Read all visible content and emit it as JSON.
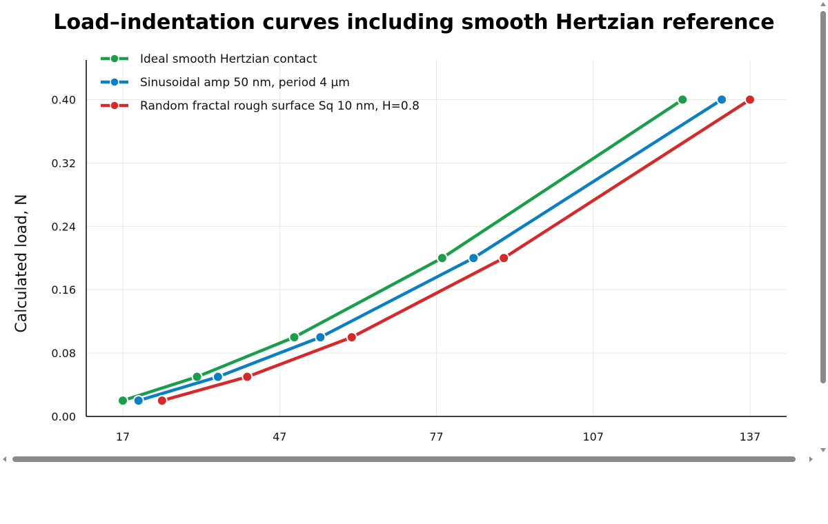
{
  "chart_data": {
    "type": "line",
    "title": "Load–indentation curves including smooth Hertzian reference",
    "ylabel": "Calculated load, N",
    "xlabel_visible_fragment": "",
    "xlim": [
      10,
      144
    ],
    "ylim": [
      0,
      0.45
    ],
    "xticks": [
      17,
      47,
      77,
      107,
      137
    ],
    "yticks": [
      0.0,
      0.08,
      0.16,
      0.24,
      0.32,
      0.4
    ],
    "xtick_labels": [
      "17",
      "47",
      "77",
      "107",
      "137"
    ],
    "ytick_labels": [
      "0.00",
      "0.08",
      "0.16",
      "0.24",
      "0.32",
      "0.40"
    ],
    "grid": true,
    "legend_position": "top-left",
    "series": [
      {
        "name": "Ideal smooth Hertzian contact",
        "color": "#1a9e4a",
        "points": [
          [
            17,
            0.02
          ],
          [
            31.2,
            0.05
          ],
          [
            49.8,
            0.1
          ],
          [
            78.1,
            0.2
          ],
          [
            124.1,
            0.4
          ]
        ]
      },
      {
        "name": "Sinusoidal amp 50 nm, period 4 µm",
        "color": "#0a7fc1",
        "points": [
          [
            20,
            0.02
          ],
          [
            35.2,
            0.05
          ],
          [
            54.8,
            0.1
          ],
          [
            84.1,
            0.2
          ],
          [
            131.6,
            0.4
          ]
        ]
      },
      {
        "name": "Random fractal rough surface Sq 10 nm, H=0.8",
        "color": "#d62a2a",
        "points": [
          [
            24.5,
            0.02
          ],
          [
            40.8,
            0.05
          ],
          [
            60.8,
            0.1
          ],
          [
            89.9,
            0.2
          ],
          [
            137,
            0.4
          ]
        ]
      }
    ]
  },
  "scrollbars": {
    "vertical": "vertical-scrollbar",
    "horizontal": "horizontal-scrollbar"
  }
}
